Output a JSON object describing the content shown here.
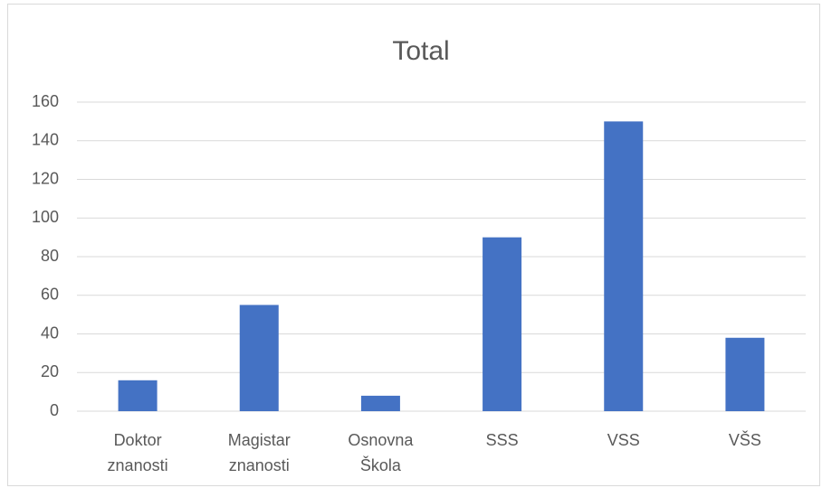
{
  "chart_data": {
    "type": "bar",
    "title": "Total",
    "categories": [
      "Doktor znanosti",
      "Magistar znanosti",
      "Osnovna Škola",
      "SSS",
      "VSS",
      "VŠS"
    ],
    "values": [
      16,
      55,
      8,
      90,
      150,
      38
    ],
    "color": "#4472c4",
    "ylim": [
      0,
      160
    ],
    "yticks": [
      0,
      20,
      40,
      60,
      80,
      100,
      120,
      140,
      160
    ],
    "grid": true
  }
}
